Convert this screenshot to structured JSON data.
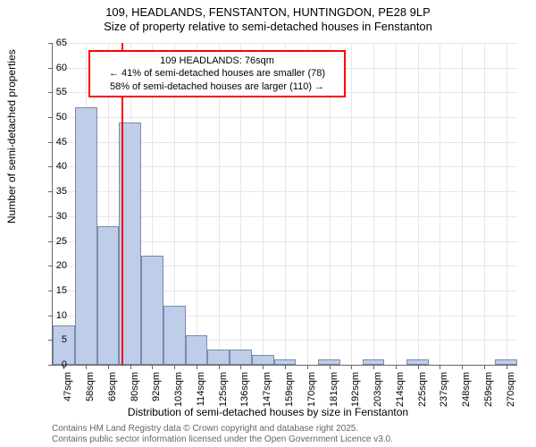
{
  "title": {
    "main": "109, HEADLANDS, FENSTANTON, HUNTINGDON, PE28 9LP",
    "sub": "Size of property relative to semi-detached houses in Fenstanton"
  },
  "y_axis": {
    "label": "Number of semi-detached properties",
    "min": 0,
    "max": 65,
    "tick_step": 5,
    "ticks": [
      0,
      5,
      10,
      15,
      20,
      25,
      30,
      35,
      40,
      45,
      50,
      55,
      60,
      65
    ]
  },
  "x_axis": {
    "label": "Distribution of semi-detached houses by size in Fenstanton",
    "ticks": [
      "47sqm",
      "58sqm",
      "69sqm",
      "80sqm",
      "92sqm",
      "103sqm",
      "114sqm",
      "125sqm",
      "136sqm",
      "147sqm",
      "159sqm",
      "170sqm",
      "181sqm",
      "192sqm",
      "203sqm",
      "214sqm",
      "225sqm",
      "237sqm",
      "248sqm",
      "259sqm",
      "270sqm"
    ]
  },
  "histogram": {
    "type": "histogram",
    "bar_color": "#becde8",
    "bar_border_color": "#7a8aad",
    "values": [
      8,
      52,
      28,
      49,
      22,
      12,
      6,
      3,
      3,
      2,
      1,
      0,
      1,
      0,
      1,
      0,
      1,
      0,
      0,
      0,
      1
    ]
  },
  "marker": {
    "position_index": 2.6,
    "color": "#ff0000",
    "label_line": "109 HEADLANDS: 76sqm",
    "box_line1": "← 41% of semi-detached houses are smaller (78)",
    "box_line2": "58% of semi-detached houses are larger (110) →",
    "box_border_color": "#ff0000"
  },
  "footer": {
    "line1": "Contains HM Land Registry data © Crown copyright and database right 2025.",
    "line2": "Contains public sector information licensed under the Open Government Licence v3.0."
  },
  "style": {
    "background": "#ffffff",
    "grid_color": "#e6e6e6",
    "axis_color": "#666666",
    "font_family": "Arial",
    "title_fontsize": 13,
    "label_fontsize": 12,
    "tick_fontsize": 11,
    "footer_fontsize": 10,
    "footer_color": "#666666"
  }
}
